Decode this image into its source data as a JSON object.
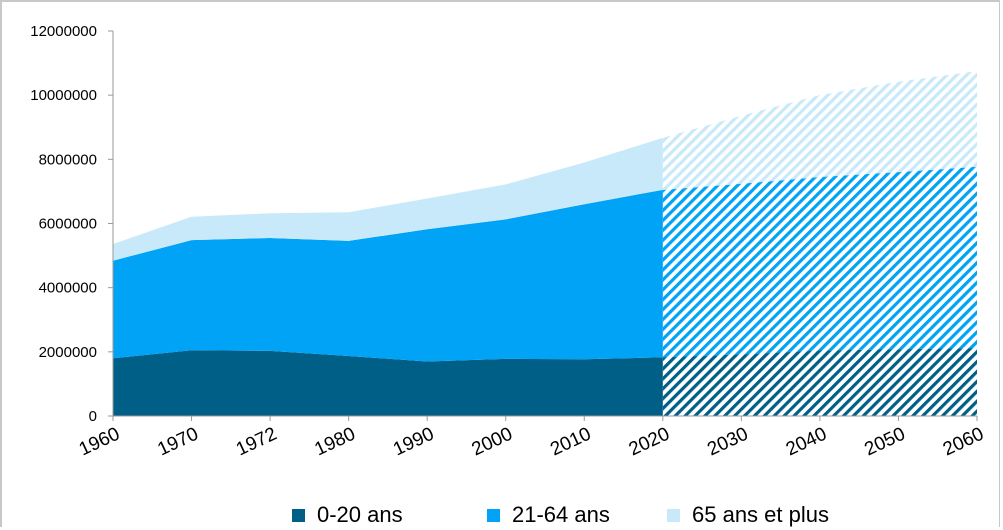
{
  "chart_data": {
    "type": "area",
    "stacked": true,
    "x": [
      "1960",
      "1970",
      "1972",
      "1980",
      "1990",
      "2000",
      "2010",
      "2020",
      "2030",
      "2040",
      "2050",
      "2060"
    ],
    "projection_from": "2020",
    "ylim": [
      0,
      12000000
    ],
    "yticks": [
      "0",
      "2000000",
      "4000000",
      "6000000",
      "8000000",
      "10000000",
      "12000000"
    ],
    "grid": false,
    "legend_position": "bottom",
    "series": [
      {
        "name": "0-20 ans",
        "color": "#005f86",
        "values": [
          1800000,
          2050000,
          2030000,
          1870000,
          1700000,
          1780000,
          1770000,
          1830000,
          1920000,
          2040000,
          2080000,
          2120000
        ]
      },
      {
        "name": "21-64 ans",
        "color": "#00a3f5",
        "values": [
          3040000,
          3430000,
          3520000,
          3590000,
          4120000,
          4350000,
          4830000,
          5220000,
          5320000,
          5410000,
          5520000,
          5650000
        ]
      },
      {
        "name": "65 ans et plus",
        "color": "#c8e9fa",
        "values": [
          520000,
          730000,
          770000,
          890000,
          960000,
          1090000,
          1300000,
          1620000,
          2120000,
          2550000,
          2820000,
          2980000
        ]
      }
    ]
  }
}
